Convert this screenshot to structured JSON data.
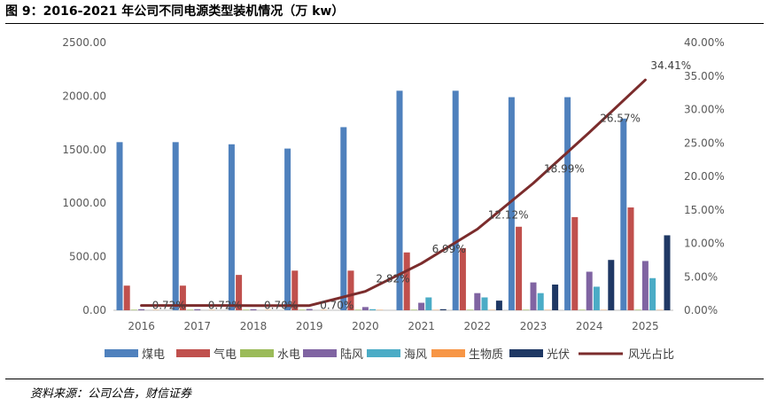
{
  "figure_title": "图 9：2016-2021 年公司不同电源类型装机情况（万 kw）",
  "source": "资料来源：公司公告，财信证券",
  "chart_data": {
    "type": "bar",
    "categories": [
      "2016",
      "2017",
      "2018",
      "2019",
      "2020",
      "2021",
      "2022",
      "2023",
      "2024",
      "2025"
    ],
    "ylim_left": [
      0,
      2500
    ],
    "ylim_right": [
      0,
      0.4
    ],
    "left_ticks": [
      "0.00",
      "500.00",
      "1000.00",
      "1500.00",
      "2000.00",
      "2500.00"
    ],
    "right_ticks": [
      "0.00%",
      "5.00%",
      "10.00%",
      "15.00%",
      "20.00%",
      "25.00%",
      "30.00%",
      "35.00%",
      "40.00%"
    ],
    "grid": false,
    "legend_position": "bottom",
    "series": [
      {
        "name": "煤电",
        "type": "bar",
        "axis": "left",
        "color": "#4F81BD",
        "values": [
          1570,
          1570,
          1550,
          1510,
          1710,
          2050,
          2050,
          1990,
          1990,
          1790
        ]
      },
      {
        "name": "气电",
        "type": "bar",
        "axis": "left",
        "color": "#C0504D",
        "values": [
          230,
          230,
          330,
          370,
          370,
          540,
          580,
          780,
          870,
          960
        ]
      },
      {
        "name": "水电",
        "type": "bar",
        "axis": "left",
        "color": "#9BBB59",
        "values": [
          5,
          5,
          5,
          5,
          5,
          5,
          5,
          5,
          5,
          5
        ]
      },
      {
        "name": "陆风",
        "type": "bar",
        "axis": "left",
        "color": "#8064A2",
        "values": [
          10,
          10,
          10,
          12,
          30,
          70,
          160,
          260,
          360,
          460
        ]
      },
      {
        "name": "海风",
        "type": "bar",
        "axis": "left",
        "color": "#4BACC6",
        "values": [
          0,
          0,
          0,
          0,
          10,
          120,
          120,
          160,
          220,
          300
        ]
      },
      {
        "name": "生物质",
        "type": "bar",
        "axis": "left",
        "color": "#F79646",
        "values": [
          3,
          3,
          3,
          3,
          3,
          3,
          3,
          3,
          3,
          3
        ]
      },
      {
        "name": "光伏",
        "type": "bar",
        "axis": "left",
        "color": "#1F3864",
        "values": [
          0,
          0,
          0,
          0,
          0,
          10,
          90,
          240,
          470,
          700
        ]
      },
      {
        "name": "风光占比",
        "type": "line",
        "axis": "right",
        "color": "#7B2C2C",
        "values": [
          0.0072,
          0.0072,
          0.007,
          0.007,
          0.0282,
          0.0699,
          0.1212,
          0.1899,
          0.2657,
          0.3441
        ],
        "labels": [
          "0.72%",
          "0.72%",
          "0.70%",
          "0.70%",
          "2.82%",
          "6.99%",
          "12.12%",
          "18.99%",
          "26.57%",
          "34.41%"
        ]
      }
    ]
  }
}
